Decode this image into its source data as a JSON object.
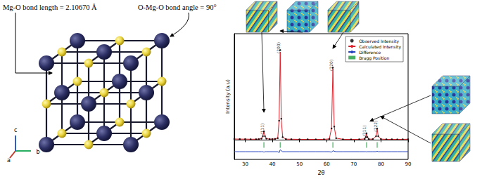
{
  "structure": {
    "bond_length_label": "Mg-O bond length = 2.10670  Å",
    "bond_angle_label": "O-Mg-O bond angle = 90°",
    "axes": [
      "a",
      "b",
      "c"
    ]
  },
  "chart_data": {
    "type": "line",
    "x_label": "2θ",
    "y_label": "Intensity (a.u)",
    "xlim": [
      26,
      90
    ],
    "xticks": [
      30,
      40,
      50,
      60,
      70,
      80,
      90
    ],
    "ylim": [
      -20,
      110
    ],
    "tick_labels": "x",
    "grid": false,
    "legend": "upper right",
    "x": [
      26,
      28,
      30,
      32,
      34,
      35,
      36,
      36.5,
      36.9,
      37.3,
      37.8,
      39,
      40,
      41,
      42,
      42.5,
      42.9,
      43.3,
      43.8,
      45,
      47,
      50,
      53,
      56,
      59,
      61,
      61.8,
      62.3,
      62.8,
      63.5,
      66,
      69,
      72,
      74,
      74.4,
      74.7,
      75,
      75.5,
      77,
      78.2,
      78.6,
      79,
      80,
      82,
      84,
      86,
      88,
      90
    ],
    "series": [
      {
        "name": "Observed Intensity",
        "type": "scatter",
        "marker": "circle",
        "color": "#000000",
        "values": [
          1.2,
          1,
          1,
          0.8,
          0.9,
          1,
          1.5,
          4,
          9,
          4,
          1.5,
          1,
          1,
          1.2,
          2,
          20,
          93,
          22,
          3,
          1,
          0.9,
          0.8,
          0.8,
          0.7,
          0.8,
          1.2,
          12,
          75,
          14,
          2,
          0.8,
          0.7,
          0.8,
          1.2,
          3,
          7,
          3,
          1,
          1,
          4,
          12,
          4,
          1,
          0.8,
          0.8,
          0.7,
          0.8,
          0.9
        ]
      },
      {
        "name": "Calculated Intensity",
        "type": "line",
        "color": "#e0202a",
        "values": [
          1.1,
          1,
          1,
          0.9,
          0.9,
          1,
          1.4,
          3.8,
          9.5,
          3.8,
          1.5,
          1,
          1,
          1.2,
          2.2,
          21,
          91,
          21,
          3,
          1,
          0.9,
          0.8,
          0.8,
          0.8,
          0.8,
          1.2,
          12.5,
          74,
          13.5,
          2,
          0.8,
          0.8,
          0.8,
          1.2,
          3,
          7.2,
          3,
          1,
          1,
          4,
          11.5,
          4,
          1,
          0.8,
          0.8,
          0.8,
          0.8,
          0.9
        ]
      },
      {
        "name": "Difference",
        "type": "line",
        "color": "#1f3fbf",
        "values": [
          -12,
          -12,
          -12,
          -12,
          -12,
          -12,
          -12,
          -12,
          -12.5,
          -12,
          -12,
          -12,
          -12,
          -12,
          -12,
          -13,
          -10,
          -11,
          -12,
          -12,
          -12,
          -12,
          -12,
          -12,
          -12,
          -12,
          -12.5,
          -11,
          -11.5,
          -12,
          -12,
          -12,
          -12,
          -12,
          -12,
          -12.2,
          -12,
          -12,
          -12,
          -12,
          -11.5,
          -12,
          -12,
          -12,
          -12,
          -12,
          -12,
          -12
        ]
      },
      {
        "name": "Bragg Position",
        "type": "scatter",
        "marker": "vline",
        "color": "#1a9a3a",
        "x": [
          36.9,
          42.9,
          62.3,
          74.7,
          78.6
        ],
        "values": [
          -5,
          -5,
          -5,
          -5,
          -5
        ]
      }
    ],
    "annotations": [
      {
        "text": "(111)",
        "x": 36.9,
        "y": 10
      },
      {
        "text": "(200)",
        "x": 42.9,
        "y": 94
      },
      {
        "text": "(220)",
        "x": 62.3,
        "y": 76
      },
      {
        "text": "(311)",
        "x": 74.7,
        "y": 8
      },
      {
        "text": "(222)",
        "x": 78.6,
        "y": 13
      }
    ]
  }
}
